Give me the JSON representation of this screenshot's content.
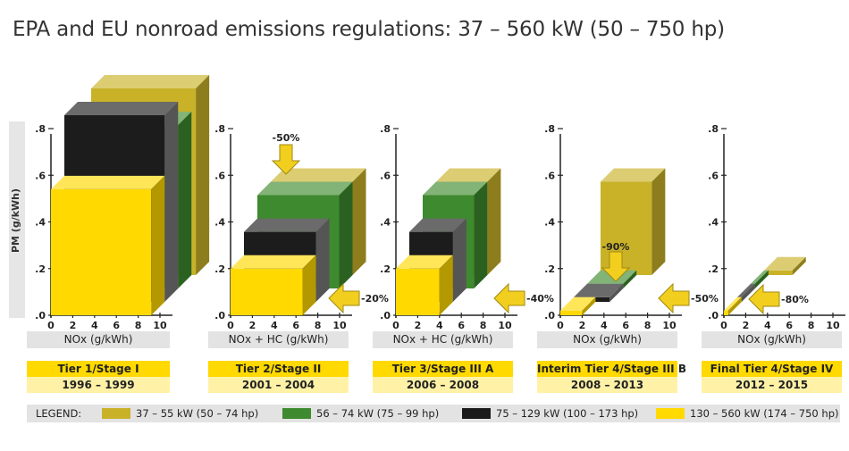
{
  "title": "EPA and EU nonroad emissions regulations: 37 – 560 kW (50 – 750 hp)",
  "colors": {
    "kw37_55": "#c9b228",
    "kw56_74": "#3e8a2e",
    "kw75_129": "#1a1a1a",
    "kw130_560": "#ffd900",
    "arrow": "#f2cf1f",
    "band": "#e3e3e3"
  },
  "legend": {
    "title": "LEGEND:",
    "items": [
      {
        "label": "37 – 55 kW (50 – 74 hp)",
        "color": "#c9b228"
      },
      {
        "label": "56 – 74 kW (75 – 99 hp)",
        "color": "#3e8a2e"
      },
      {
        "label": "75 – 129 kW (100 – 173 hp)",
        "color": "#1a1a1a"
      },
      {
        "label": "130 – 560 kW (174 – 750 hp)",
        "color": "#ffd900"
      }
    ]
  },
  "chart_data": {
    "type": "3d-bar",
    "ylabel": "PM (g/kWh)",
    "y_ticks": [
      ".0",
      ".2",
      ".4",
      ".6",
      ".8"
    ],
    "x_ticks": [
      "0",
      "2",
      "4",
      "6",
      "8",
      "10"
    ],
    "ylim": [
      0,
      0.8
    ],
    "xlim": [
      0,
      10
    ],
    "panels": [
      {
        "tier": "Tier 1/Stage I",
        "years": "1996 – 1999",
        "xlabel": "NOx (g/kWh)",
        "boxes": [
          {
            "series": "37 – 55 kW (50 – 74 hp)",
            "nox": 9.6,
            "pm": 0.8
          },
          {
            "series": "56 – 74 kW (75 – 99 hp)",
            "nox": 9.2,
            "pm": 0.7
          },
          {
            "series": "75 – 129 kW (100 – 173 hp)",
            "nox": 9.2,
            "pm": 0.8
          },
          {
            "series": "130 – 560 kW (174 – 750 hp)",
            "nox": 9.2,
            "pm": 0.54
          }
        ],
        "arrows": []
      },
      {
        "tier": "Tier 2/Stage II",
        "years": "2001 – 2004",
        "xlabel": "NOx + HC (g/kWh)",
        "boxes": [
          {
            "series": "37 – 55 kW (50 – 74 hp)",
            "nox": 7.5,
            "pm": 0.4
          },
          {
            "series": "56 – 74 kW (75 – 99 hp)",
            "nox": 7.5,
            "pm": 0.4
          },
          {
            "series": "75 – 129 kW (100 – 173 hp)",
            "nox": 6.6,
            "pm": 0.3
          },
          {
            "series": "130 – 560 kW (174 – 750 hp)",
            "nox": 6.6,
            "pm": 0.2
          }
        ],
        "arrows": [
          {
            "label": "-50%",
            "dir": "down"
          },
          {
            "label": "-20%",
            "dir": "left"
          }
        ]
      },
      {
        "tier": "Tier 3/Stage III A",
        "years": "2006 – 2008",
        "xlabel": "NOx + HC (g/kWh)",
        "boxes": [
          {
            "series": "37 – 55 kW (50 – 74 hp)",
            "nox": 4.7,
            "pm": 0.4
          },
          {
            "series": "56 – 74 kW (75 – 99 hp)",
            "nox": 4.7,
            "pm": 0.4
          },
          {
            "series": "75 – 129 kW (100 – 173 hp)",
            "nox": 4.0,
            "pm": 0.3
          },
          {
            "series": "130 – 560 kW (174 – 750 hp)",
            "nox": 4.0,
            "pm": 0.2
          }
        ],
        "arrows": [
          {
            "label": "-40%",
            "dir": "left"
          }
        ]
      },
      {
        "tier": "Interim Tier 4/Stage III B",
        "years": "2008 – 2013",
        "xlabel": "NOx (g/kWh)",
        "boxes": [
          {
            "series": "37 – 55 kW (50 – 74 hp)",
            "nox": 4.7,
            "pm": 0.4
          },
          {
            "series": "56 – 74 kW (75 – 99 hp)",
            "nox": 3.3,
            "pm": 0.02
          },
          {
            "series": "75 – 129 kW (100 – 173 hp)",
            "nox": 3.3,
            "pm": 0.02
          },
          {
            "series": "130 – 560 kW (174 – 750 hp)",
            "nox": 2.0,
            "pm": 0.02
          }
        ],
        "arrows": [
          {
            "label": "-90%",
            "dir": "down"
          },
          {
            "label": "-50%",
            "dir": "left"
          }
        ]
      },
      {
        "tier": "Final Tier 4/Stage IV",
        "years": "2012 – 2015",
        "xlabel": "NOx (g/kWh)",
        "boxes": [
          {
            "series": "37 – 55 kW (50 – 74 hp)",
            "nox": 2.6,
            "pm": 0.02
          },
          {
            "series": "56 – 74 kW (75 – 99 hp)",
            "nox": 0.4,
            "pm": 0.02
          },
          {
            "series": "75 – 129 kW (100 – 173 hp)",
            "nox": 0.4,
            "pm": 0.02
          },
          {
            "series": "130 – 560 kW (174 – 750 hp)",
            "nox": 0.4,
            "pm": 0.02
          }
        ],
        "arrows": [
          {
            "label": "-80%",
            "dir": "left"
          }
        ]
      }
    ]
  }
}
